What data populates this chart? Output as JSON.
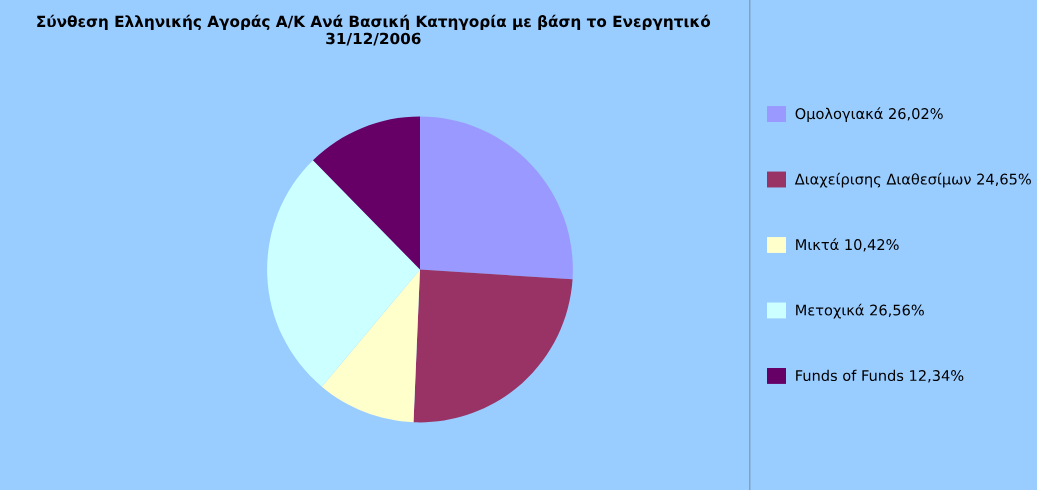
{
  "chart_data": {
    "type": "pie",
    "title": "Σύνθεση Ελληνικής Αγοράς Α/Κ Ανά Βασική Κατηγορία με βάση το Ενεργητικό\n31/12/2006",
    "categories": [
      "Ομολογιακά 26,02%",
      "Διαχείρισης Διαθεσίμων 24,65%",
      "Μικτά 10,42%",
      "Μετοχικά 26,56%",
      "Funds of Funds 12,34%"
    ],
    "values": [
      26.02,
      24.65,
      10.42,
      26.56,
      12.34
    ],
    "colors": [
      "#9999ff",
      "#993366",
      "#ffffcc",
      "#ccffff",
      "#660066"
    ],
    "legend": "right"
  }
}
